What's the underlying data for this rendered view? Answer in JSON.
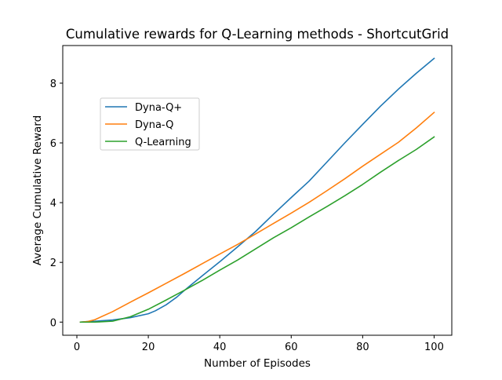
{
  "chart_data": {
    "type": "line",
    "title": "Cumulative rewards for Q-Learning methods - ShortcutGrid",
    "xlabel": "Number of Episodes",
    "ylabel": "Average Cumulative Reward",
    "xlim": [
      -3.95,
      104.95
    ],
    "ylim": [
      -0.44,
      9.26
    ],
    "xticks": [
      0,
      20,
      40,
      60,
      80,
      100
    ],
    "yticks": [
      0,
      2,
      4,
      6,
      8
    ],
    "grid": false,
    "legend_position": "upper-left",
    "series": [
      {
        "name": "Dyna-Q+",
        "color": "#1f77b4",
        "x": [
          1,
          3,
          5,
          10,
          15,
          20,
          22,
          25,
          28,
          30,
          32,
          35,
          40,
          45,
          50,
          55,
          60,
          65,
          70,
          75,
          80,
          85,
          90,
          95,
          100
        ],
        "y": [
          0.0,
          0.02,
          0.03,
          0.07,
          0.15,
          0.28,
          0.38,
          0.58,
          0.84,
          1.05,
          1.25,
          1.54,
          2.02,
          2.52,
          3.03,
          3.61,
          4.17,
          4.72,
          5.36,
          6.0,
          6.62,
          7.23,
          7.8,
          8.33,
          8.83
        ]
      },
      {
        "name": "Dyna-Q",
        "color": "#ff7f0e",
        "x": [
          1,
          3,
          5,
          10,
          15,
          20,
          25,
          30,
          35,
          40,
          45,
          50,
          55,
          60,
          65,
          70,
          75,
          80,
          85,
          90,
          95,
          100
        ],
        "y": [
          0.0,
          0.02,
          0.08,
          0.35,
          0.67,
          0.98,
          1.3,
          1.62,
          1.95,
          2.28,
          2.6,
          2.95,
          3.3,
          3.65,
          4.01,
          4.4,
          4.8,
          5.22,
          5.62,
          6.02,
          6.5,
          7.02
        ]
      },
      {
        "name": "Q-Learning",
        "color": "#2ca02c",
        "x": [
          1,
          3,
          5,
          10,
          15,
          20,
          25,
          30,
          35,
          40,
          45,
          50,
          55,
          60,
          65,
          70,
          75,
          80,
          85,
          90,
          95,
          100
        ],
        "y": [
          0.0,
          0.0,
          0.0,
          0.03,
          0.18,
          0.43,
          0.74,
          1.06,
          1.39,
          1.74,
          2.08,
          2.45,
          2.82,
          3.16,
          3.52,
          3.87,
          4.23,
          4.61,
          5.02,
          5.41,
          5.78,
          6.2
        ]
      }
    ]
  }
}
